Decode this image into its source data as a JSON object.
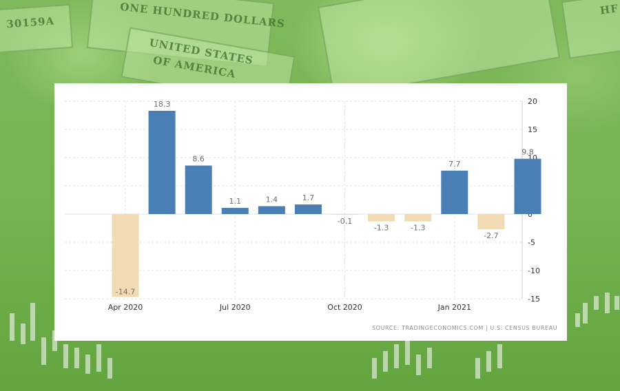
{
  "background": {
    "bill_texts": [
      "ONE HUNDRED DOLLARS",
      "UNITED STATES",
      "OF AMERICA",
      "30159A",
      "HF"
    ]
  },
  "source_text": "SOURCE: TRADINGECONOMICS.COM  |  U.S. CENSUS BUREAU",
  "chart_data": {
    "type": "bar",
    "title": "",
    "xlabel": "",
    "ylabel": "",
    "categories": [
      "Apr 2020",
      "May 2020",
      "Jun 2020",
      "Jul 2020",
      "Aug 2020",
      "Sep 2020",
      "Oct 2020",
      "Nov 2020",
      "Dec 2020",
      "Jan 2021",
      "Feb 2021",
      "Mar 2021"
    ],
    "values": [
      -14.7,
      18.3,
      8.6,
      1.1,
      1.4,
      1.7,
      -0.1,
      -1.3,
      -1.3,
      7.7,
      -2.7,
      9.8
    ],
    "data_labels": [
      "-14.7",
      "18.3",
      "8.6",
      "1.1",
      "1.4",
      "1.7",
      "-0.1",
      "-1.3",
      "-1.3",
      "7.7",
      "-2.7",
      "9.8"
    ],
    "x_tick_labels": [
      "Apr 2020",
      "Jul 2020",
      "Oct 2020",
      "Jan 2021"
    ],
    "x_tick_indices": [
      0,
      3,
      6,
      9
    ],
    "y_ticks": [
      20,
      15,
      10,
      5,
      0,
      -5,
      -10,
      -15
    ],
    "y_tick_labels": [
      "20",
      "15",
      "10",
      "5",
      "0",
      "-5",
      "-10",
      "-15"
    ],
    "ylim": [
      -15,
      20
    ],
    "y_axis_side": "right",
    "grid": true,
    "colors": {
      "positive": "#4a7fb5",
      "negative": "#f2dbb3",
      "grid": "#e3e3e3",
      "label": "#6e6e6e"
    }
  }
}
